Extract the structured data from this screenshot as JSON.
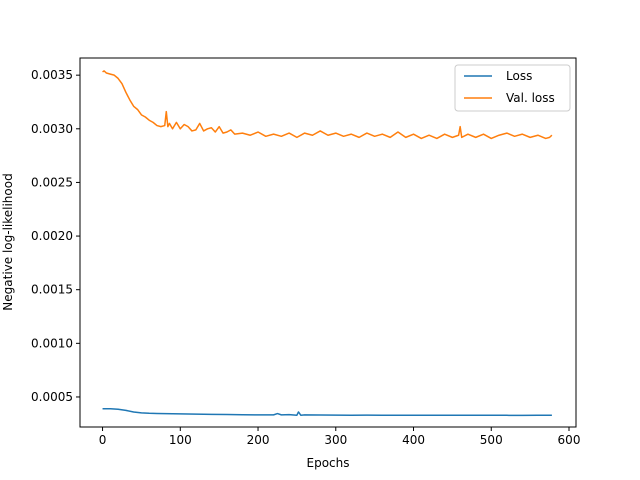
{
  "chart_data": {
    "type": "line",
    "title": "",
    "xlabel": "Epochs",
    "ylabel": "Negative log-likelihood",
    "xlim": [
      -29,
      609
    ],
    "ylim": [
      0.00022,
      0.00366
    ],
    "xticks": [
      0,
      100,
      200,
      300,
      400,
      500,
      600
    ],
    "xtick_labels": [
      "0",
      "100",
      "200",
      "300",
      "400",
      "500",
      "600"
    ],
    "yticks": [
      0.0005,
      0.001,
      0.0015,
      0.002,
      0.0025,
      0.003,
      0.0035
    ],
    "ytick_labels": [
      "0.0005",
      "0.0010",
      "0.0015",
      "0.0020",
      "0.0025",
      "0.0030",
      "0.0035"
    ],
    "grid": false,
    "legend_position": "top-right",
    "series": [
      {
        "name": "Loss",
        "color": "#1f77b4",
        "x": [
          0,
          10,
          20,
          30,
          40,
          50,
          60,
          70,
          80,
          100,
          120,
          140,
          160,
          180,
          200,
          220,
          225,
          230,
          240,
          250,
          252,
          255,
          260,
          280,
          300,
          320,
          340,
          360,
          380,
          400,
          420,
          440,
          460,
          480,
          500,
          520,
          540,
          560,
          578
        ],
        "y": [
          0.00039,
          0.00039,
          0.000385,
          0.000375,
          0.00036,
          0.000352,
          0.000348,
          0.000346,
          0.000345,
          0.000342,
          0.00034,
          0.000338,
          0.000336,
          0.000334,
          0.000333,
          0.000333,
          0.000345,
          0.000333,
          0.000335,
          0.00033,
          0.00036,
          0.00033,
          0.000333,
          0.000332,
          0.000331,
          0.00033,
          0.000331,
          0.00033,
          0.00033,
          0.000329,
          0.00033,
          0.00033,
          0.000329,
          0.00033,
          0.00033,
          0.000329,
          0.000328,
          0.000329,
          0.000329
        ]
      },
      {
        "name": "Val. loss",
        "color": "#ff7f0e",
        "x": [
          0,
          2,
          5,
          10,
          15,
          20,
          25,
          30,
          35,
          40,
          45,
          50,
          55,
          60,
          65,
          70,
          75,
          80,
          82,
          84,
          86,
          90,
          95,
          100,
          105,
          110,
          115,
          120,
          125,
          130,
          135,
          140,
          145,
          150,
          155,
          160,
          165,
          170,
          180,
          190,
          200,
          210,
          220,
          230,
          240,
          250,
          260,
          270,
          280,
          290,
          300,
          310,
          320,
          330,
          340,
          350,
          360,
          370,
          380,
          390,
          400,
          410,
          420,
          430,
          440,
          450,
          458,
          460,
          462,
          470,
          480,
          490,
          500,
          510,
          520,
          530,
          540,
          550,
          560,
          570,
          575,
          578
        ],
        "y": [
          0.00353,
          0.00354,
          0.00352,
          0.00351,
          0.0035,
          0.00347,
          0.00342,
          0.00334,
          0.00327,
          0.00321,
          0.00318,
          0.00313,
          0.00311,
          0.00308,
          0.00306,
          0.00303,
          0.00302,
          0.00303,
          0.00316,
          0.00302,
          0.00305,
          0.003,
          0.00306,
          0.003,
          0.00304,
          0.00302,
          0.00298,
          0.00299,
          0.00305,
          0.00298,
          0.003,
          0.00301,
          0.00297,
          0.00302,
          0.00296,
          0.00297,
          0.00299,
          0.00295,
          0.00296,
          0.00294,
          0.00297,
          0.00293,
          0.00295,
          0.00293,
          0.00296,
          0.00292,
          0.00296,
          0.00294,
          0.00298,
          0.00294,
          0.00296,
          0.00293,
          0.00295,
          0.00292,
          0.00296,
          0.00293,
          0.00295,
          0.00292,
          0.00297,
          0.00292,
          0.00295,
          0.00291,
          0.00294,
          0.00291,
          0.00295,
          0.00292,
          0.00294,
          0.00302,
          0.00292,
          0.00295,
          0.00292,
          0.00295,
          0.00291,
          0.00294,
          0.00296,
          0.00293,
          0.00295,
          0.00292,
          0.00294,
          0.00291,
          0.00292,
          0.00294
        ]
      }
    ]
  }
}
